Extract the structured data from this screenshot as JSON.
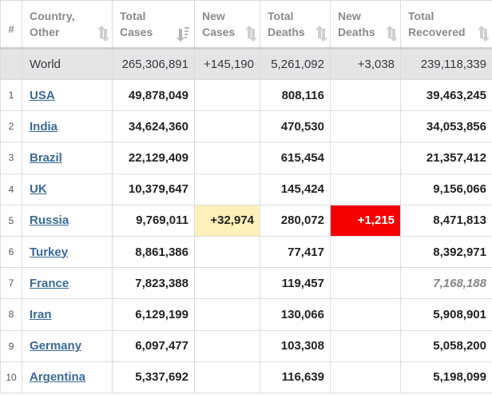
{
  "header": {
    "num": "#",
    "country": [
      "Country,",
      "Other"
    ],
    "total_cases": [
      "Total",
      "Cases"
    ],
    "new_cases": [
      "New",
      "Cases"
    ],
    "total_deaths": [
      "Total",
      "Deaths"
    ],
    "new_deaths": [
      "New",
      "Deaths"
    ],
    "total_recovered": [
      "Total",
      "Recovered"
    ]
  },
  "world": {
    "country": "World",
    "total_cases": "265,306,891",
    "new_cases": "+145,190",
    "total_deaths": "5,261,092",
    "new_deaths": "+3,038",
    "total_recovered": "239,118,339"
  },
  "rows": [
    {
      "num": "1",
      "country": "USA",
      "total_cases": "49,878,049",
      "new_cases": "",
      "total_deaths": "808,116",
      "new_deaths": "",
      "total_recovered": "39,463,245"
    },
    {
      "num": "2",
      "country": "India",
      "total_cases": "34,624,360",
      "new_cases": "",
      "total_deaths": "470,530",
      "new_deaths": "",
      "total_recovered": "34,053,856"
    },
    {
      "num": "3",
      "country": "Brazil",
      "total_cases": "22,129,409",
      "new_cases": "",
      "total_deaths": "615,454",
      "new_deaths": "",
      "total_recovered": "21,357,412"
    },
    {
      "num": "4",
      "country": "UK",
      "total_cases": "10,379,647",
      "new_cases": "",
      "total_deaths": "145,424",
      "new_deaths": "",
      "total_recovered": "9,156,066"
    },
    {
      "num": "5",
      "country": "Russia",
      "total_cases": "9,769,011",
      "new_cases": "+32,974",
      "total_deaths": "280,072",
      "new_deaths": "+1,215",
      "total_recovered": "8,471,813"
    },
    {
      "num": "6",
      "country": "Turkey",
      "total_cases": "8,861,386",
      "new_cases": "",
      "total_deaths": "77,417",
      "new_deaths": "",
      "total_recovered": "8,392,971"
    },
    {
      "num": "7",
      "country": "France",
      "total_cases": "7,823,388",
      "new_cases": "",
      "total_deaths": "119,457",
      "new_deaths": "",
      "total_recovered": "7,168,188"
    },
    {
      "num": "8",
      "country": "Iran",
      "total_cases": "6,129,199",
      "new_cases": "",
      "total_deaths": "130,066",
      "new_deaths": "",
      "total_recovered": "5,908,901"
    },
    {
      "num": "9",
      "country": "Germany",
      "total_cases": "6,097,477",
      "new_cases": "",
      "total_deaths": "103,308",
      "new_deaths": "",
      "total_recovered": "5,058,200"
    },
    {
      "num": "10",
      "country": "Argentina",
      "total_cases": "5,337,692",
      "new_cases": "",
      "total_deaths": "116,639",
      "new_deaths": "",
      "total_recovered": "5,198,099"
    }
  ],
  "colors": {
    "new_cases_highlight": "#fdf0b8",
    "new_deaths_highlight": "#f50000",
    "link": "#3a6a9a",
    "world_row_bg": "#e5e5e5",
    "estimated_recovered_text": "#888888"
  }
}
